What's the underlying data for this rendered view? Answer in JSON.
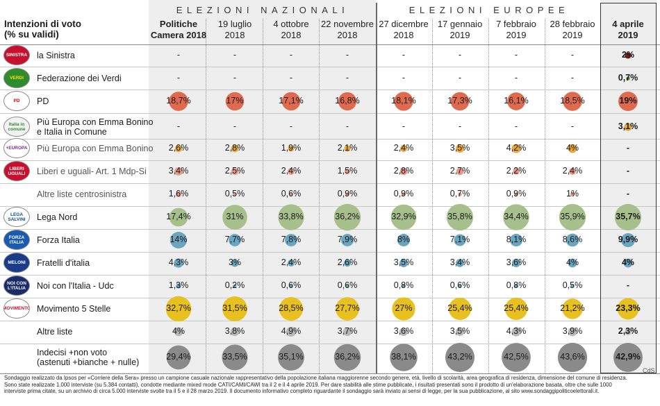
{
  "header": {
    "row_title": "Intenzioni di voto\n(% su validi)",
    "section_national": "ELEZIONI NAZIONALI",
    "section_european": "ELEZIONI EUROPEE",
    "credit": "CdS"
  },
  "columns": [
    {
      "label": "Politiche\nCamera 2018",
      "bold": true
    },
    {
      "label": "19 luglio\n2018",
      "bold": false
    },
    {
      "label": "4 ottobre\n2018",
      "bold": false
    },
    {
      "label": "22 novembre\n2018",
      "bold": false
    },
    {
      "label": "27 dicembre\n2018",
      "bold": false
    },
    {
      "label": "17 gennaio\n2019",
      "bold": false
    },
    {
      "label": "7 febbraio\n2019",
      "bold": false
    },
    {
      "label": "28 febbraio\n2019",
      "bold": false
    },
    {
      "label": "4 aprile\n2019",
      "bold": true
    }
  ],
  "chart_data": {
    "type": "table",
    "series": [
      {
        "name": "la Sinistra",
        "logo_text": "SINISTRA",
        "logo_color": "#c8102e",
        "logo_text_color": "#ffffff",
        "color": "#7a1c1c",
        "grey_label": false,
        "values": [
          null,
          null,
          null,
          null,
          null,
          null,
          null,
          null,
          2
        ],
        "labels": [
          "-",
          "-",
          "-",
          "-",
          "-",
          "-",
          "-",
          "-",
          "2%"
        ]
      },
      {
        "name": "Federazione dei Verdi",
        "logo_text": "VERDI",
        "logo_color": "#2e8b2e",
        "logo_text_color": "#ffe600",
        "color": "#4a8a2a",
        "grey_label": false,
        "values": [
          null,
          null,
          null,
          null,
          null,
          null,
          null,
          null,
          0.7
        ],
        "labels": [
          "-",
          "-",
          "-",
          "-",
          "-",
          "-",
          "-",
          "-",
          "0,7%"
        ]
      },
      {
        "name": "PD",
        "logo_text": "PD",
        "logo_color": "#ffffff",
        "logo_text_color": "#d10000",
        "color": "#e06a4e",
        "grey_label": false,
        "values": [
          18.7,
          17,
          17.1,
          16.8,
          18.1,
          17.3,
          16.1,
          18.5,
          19
        ],
        "labels": [
          "18,7%",
          "17%",
          "17,1%",
          "16,8%",
          "18,1%",
          "17,3%",
          "16,1%",
          "18,5%",
          "19%"
        ]
      },
      {
        "name": "Più Europa con Emma Bonino\ne Italia in Comune",
        "logo_text": "Italia in comune",
        "logo_color": "#f2f2f2",
        "logo_text_color": "#2a8a2a",
        "color": "#e8a838",
        "grey_label": false,
        "values": [
          null,
          null,
          null,
          null,
          null,
          null,
          null,
          null,
          3.1
        ],
        "labels": [
          "-",
          "-",
          "-",
          "-",
          "-",
          "-",
          "-",
          "-",
          "3,1%"
        ]
      },
      {
        "name": "Più Europa con Emma Bonino",
        "logo_text": "+EUROPA",
        "logo_color": "#ffffff",
        "logo_text_color": "#7a2a8a",
        "color": "#e8a838",
        "grey_label": true,
        "values": [
          2.6,
          2.8,
          1.9,
          2.1,
          2.4,
          3.5,
          4.2,
          4,
          null
        ],
        "labels": [
          "2,6%",
          "2,8%",
          "1,9%",
          "2,1%",
          "2,4%",
          "3,5%",
          "4,2%",
          "4%",
          "-"
        ]
      },
      {
        "name": "Liberi e uguali- Art. 1 Mdp-Si",
        "logo_text": "LIBERI UGUALI",
        "logo_color": "#c8102e",
        "logo_text_color": "#ffffff",
        "color": "#e89a8a",
        "grey_label": true,
        "values": [
          3.4,
          2.5,
          2.4,
          1.5,
          2.8,
          2.7,
          2.2,
          2.4,
          null
        ],
        "labels": [
          "3,4%",
          "2,5%",
          "2,4%",
          "1,5%",
          "2,8%",
          "2,7%",
          "2,2%",
          "2,4%",
          "-"
        ]
      },
      {
        "name": "Altre liste centrosinistra",
        "logo_text": "",
        "logo_color": "",
        "logo_text_color": "",
        "color": "#e89a8a",
        "grey_label": true,
        "values": [
          1.6,
          0.5,
          0.6,
          0.9,
          0.9,
          0.7,
          0.9,
          1,
          null
        ],
        "labels": [
          "1,6%",
          "0,5%",
          "0,6%",
          "0,9%",
          "0,9%",
          "0,7%",
          "0,9%",
          "1%",
          "-"
        ]
      },
      {
        "name": "Lega Nord",
        "logo_text": "LEGA SALVINI",
        "logo_color": "#ffffff",
        "logo_text_color": "#0a4a8a",
        "color": "#a7bf8a",
        "grey_label": false,
        "values": [
          17.4,
          31,
          33.8,
          36.2,
          32.9,
          35.8,
          34.4,
          35.9,
          35.7
        ],
        "labels": [
          "17,4%",
          "31%",
          "33,8%",
          "36,2%",
          "32,9%",
          "35,8%",
          "34,4%",
          "35,9%",
          "35,7%"
        ]
      },
      {
        "name": "Forza Italia",
        "logo_text": "FORZA ITALIA",
        "logo_color": "#1a5ab0",
        "logo_text_color": "#ffffff",
        "color": "#6aa6c0",
        "grey_label": false,
        "values": [
          14,
          7.7,
          7.8,
          7.9,
          8,
          7.1,
          8.1,
          8.6,
          9.9
        ],
        "labels": [
          "14%",
          "7,7%",
          "7,8%",
          "7,9%",
          "8%",
          "7,1%",
          "8,1%",
          "8,6%",
          "9,9%"
        ]
      },
      {
        "name": "Fratelli d'italia",
        "logo_text": "MELONI",
        "logo_color": "#1a3a8a",
        "logo_text_color": "#ffffff",
        "color": "#6aa6c0",
        "grey_label": false,
        "values": [
          4.3,
          3,
          2.4,
          2.6,
          3.5,
          3.4,
          3.6,
          4,
          4
        ],
        "labels": [
          "4,3%",
          "3%",
          "2,4%",
          "2,6%",
          "3,5%",
          "3,4%",
          "3,6%",
          "4%",
          "4%"
        ]
      },
      {
        "name": "Noi con l'Italia - Udc",
        "logo_text": "NOI CON L'ITALIA",
        "logo_color": "#1a2a6a",
        "logo_text_color": "#ffffff",
        "color": "#6aa6c0",
        "grey_label": false,
        "values": [
          1.3,
          0.2,
          0.6,
          0.6,
          0.8,
          0.6,
          0.8,
          0.5,
          null
        ],
        "labels": [
          "1,3%",
          "0,2%",
          "0,6%",
          "0,6%",
          "0,8%",
          "0,6%",
          "0,8%",
          "0,5%",
          "-"
        ]
      },
      {
        "name": "Movimento 5 Stelle",
        "logo_text": "MOVIMENTO",
        "logo_color": "#ffffff",
        "logo_text_color": "#c8102e",
        "color": "#e8c020",
        "grey_label": false,
        "values": [
          32.7,
          31.5,
          28.5,
          27.7,
          27,
          25.4,
          25.4,
          21.2,
          23.3
        ],
        "labels": [
          "32,7%",
          "31,5%",
          "28,5%",
          "27,7%",
          "27%",
          "25,4%",
          "25,4%",
          "21,2%",
          "23,3%"
        ]
      },
      {
        "name": "Altre liste",
        "logo_text": "",
        "logo_color": "",
        "logo_text_color": "",
        "color": "#b8b8b8",
        "grey_label": false,
        "values": [
          4,
          3.8,
          4.9,
          3.7,
          3.6,
          3.5,
          4.3,
          3.9,
          2.3
        ],
        "labels": [
          "4%",
          "3,8%",
          "4,9%",
          "3,7%",
          "3,6%",
          "3,5%",
          "4,3%",
          "3,9%",
          "2,3%"
        ]
      },
      {
        "name": "Indecisi +non voto\n(astenuti +bianche + nulle)",
        "logo_text": "",
        "logo_color": "",
        "logo_text_color": "",
        "color": "#8a8a8a",
        "grey_label": false,
        "values": [
          29.4,
          33.5,
          35.1,
          36.2,
          38.1,
          43.2,
          42.5,
          43.6,
          42.9
        ],
        "labels": [
          "29,4%",
          "33,5%",
          "35,1%",
          "36,2%",
          "38,1%",
          "43,2%",
          "42,5%",
          "43,6%",
          "42,9%"
        ]
      }
    ]
  },
  "footnote": "Sondaggio realizzato da Ipsos per «Corriere della Sera» presso un campione casuale nazionale rappresentativo della popolazione italiana maggiorenne secondo genere, età, livello di scolarità, area geografica di residenza, dimensione del comune di residenza. Sono state realizzate 1.000 interviste (su 5.384 contatti), condotte mediante mixed mode CATI/CAMI/CAWI tra il 2 e il 4 aprile 2019. Per dare stabilità alle stime pubblicate, i risultati presentati sono il prodotto di un'elaborazione basata, oltre che sulle 1000 interviste prima citate, su un archivio di circa 5.000 interviste svolte tra il 5 e il 28 marzo 2019. Il documento informativo completo riguardante il sondaggio sarà inviato ai sensi di legge, per la sua pubblicazione, al sito www.sondaggipoliticoelettorali.it."
}
